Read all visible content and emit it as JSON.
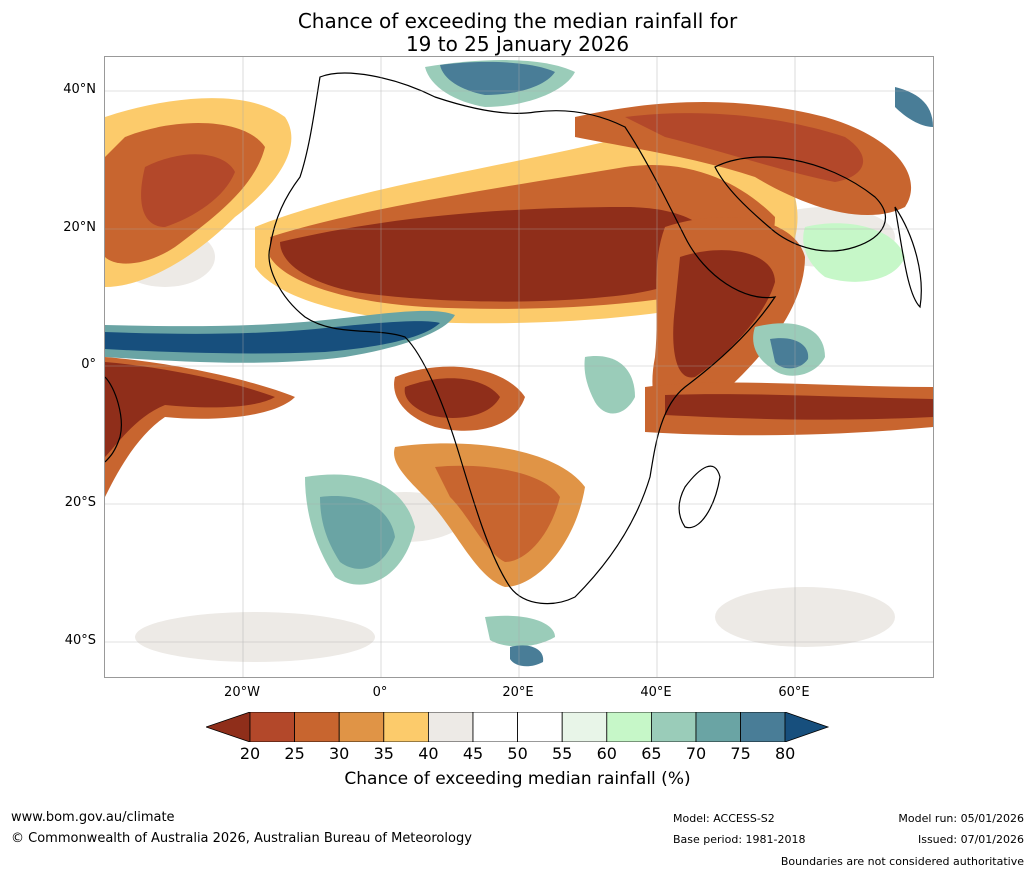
{
  "title": {
    "line1": "Chance of exceeding the median rainfall for",
    "line2": "19 to 25 January 2026"
  },
  "map": {
    "lat_labels": [
      "40°N",
      "20°N",
      "0°",
      "20°S",
      "40°S"
    ],
    "lon_labels": [
      "20°W",
      "0°",
      "20°E",
      "40°E",
      "60°E"
    ]
  },
  "legend": {
    "ticks": [
      "20",
      "25",
      "30",
      "35",
      "40",
      "45",
      "50",
      "55",
      "60",
      "65",
      "70",
      "75",
      "80"
    ],
    "colors": [
      "#8f2e1a",
      "#b3482a",
      "#c8652f",
      "#e09446",
      "#fccb6b",
      "#edeae6",
      "#ffffff",
      "#ffffff",
      "#e8f5e8",
      "#c6f7c8",
      "#9accb9",
      "#6aa4a4",
      "#497d97",
      "#174f7d"
    ],
    "title": "Chance of exceeding median rainfall (%)"
  },
  "footer": {
    "website": "www.bom.gov.au/climate",
    "copyright": "© Commonwealth of Australia 2026, Australian Bureau of Meteorology",
    "model": "Model: ACCESS-S2",
    "base_period": "Base period: 1981-2018",
    "model_run": "Model run: 05/01/2026",
    "issued": "Issued: 07/01/2026",
    "disclaimer": "Boundaries are not considered authoritative"
  }
}
